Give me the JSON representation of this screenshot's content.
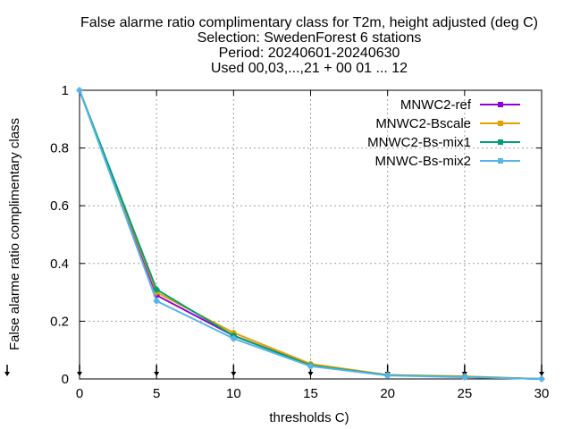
{
  "chart_data": {
    "type": "line",
    "title_lines": [
      "False alarme ratio complimentary class  for T2m, height adjusted (deg C)",
      "Selection: SwedenForest      6 stations",
      "Period: 20240601-20240630",
      "Used 00,03,...,21 + 00 01 ... 12"
    ],
    "xlabel": "thresholds C)",
    "ylabel": "False alarme ratio complimentary class",
    "xlim": [
      0,
      30
    ],
    "ylim": [
      0,
      1
    ],
    "x_ticks": [
      "0",
      "5",
      "10",
      "15",
      "20",
      "25",
      "30"
    ],
    "y_ticks": [
      "0",
      "0.2",
      "0.4",
      "0.6",
      "0.8",
      "1"
    ],
    "grid": true,
    "legend_position": "top-right",
    "x": [
      0,
      5,
      10,
      15,
      20,
      25,
      30
    ],
    "series": [
      {
        "name": "MNWC2-ref",
        "color": "#9400d3",
        "values": [
          1.0,
          0.29,
          0.15,
          0.048,
          0.013,
          0.007,
          0.0
        ]
      },
      {
        "name": "MNWC2-Bscale",
        "color": "#e69f00",
        "values": [
          1.0,
          0.3,
          0.16,
          0.052,
          0.014,
          0.009,
          0.0
        ]
      },
      {
        "name": "MNWC2-Bs-mix1",
        "color": "#009e73",
        "values": [
          1.0,
          0.31,
          0.15,
          0.047,
          0.013,
          0.007,
          0.0
        ]
      },
      {
        "name": "MNWC-Bs-mix2",
        "color": "#56b4e9",
        "values": [
          1.0,
          0.27,
          0.14,
          0.044,
          0.012,
          0.006,
          0.0
        ]
      }
    ],
    "tick_markers_at": [
      0,
      5,
      10,
      15,
      20,
      25,
      30
    ]
  }
}
